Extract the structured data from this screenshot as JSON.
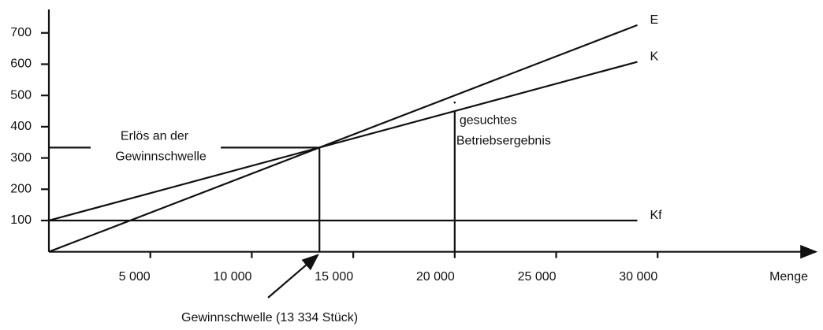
{
  "chart_data": {
    "type": "line",
    "x": [
      0,
      29000
    ],
    "series": [
      {
        "name": "E",
        "color": "#111111",
        "values": [
          0,
          725
        ]
      },
      {
        "name": "K",
        "color": "#111111",
        "values": [
          100,
          607.5
        ]
      },
      {
        "name": "Kf",
        "color": "#111111",
        "values": [
          100,
          100
        ]
      }
    ],
    "xlim": [
      0,
      37800
    ],
    "ylim": [
      0,
      775
    ],
    "xticks": [
      {
        "value": 5000,
        "label": "5 000"
      },
      {
        "value": 10000,
        "label": "10 000"
      },
      {
        "value": 15000,
        "label": "15 000"
      },
      {
        "value": 20000,
        "label": "20 000"
      },
      {
        "value": 25000,
        "label": "25 000"
      },
      {
        "value": 30000,
        "label": "30 000"
      }
    ],
    "yticks": [
      100,
      200,
      300,
      400,
      500,
      600,
      700
    ],
    "x_label": "Menge",
    "breakeven": {
      "x": 13334,
      "y": 333.35,
      "label": "Gewinnschwelle (13 334 Stück)",
      "revenue_label": [
        "Erlös an der",
        "Gewinnschwelle"
      ]
    },
    "target": {
      "x": 20000,
      "K": 450,
      "E": 500,
      "label": [
        "gesuchtes",
        "Betriebsergebnis"
      ]
    }
  }
}
